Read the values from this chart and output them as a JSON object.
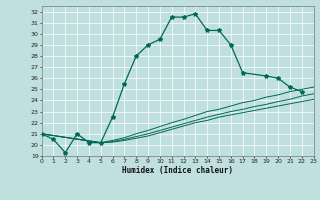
{
  "title": "",
  "xlabel": "Humidex (Indice chaleur)",
  "bg_color": "#c0e0e0",
  "line_color": "#006858",
  "xlim": [
    0,
    23
  ],
  "ylim": [
    19,
    32.5
  ],
  "yticks": [
    19,
    20,
    21,
    22,
    23,
    24,
    25,
    26,
    27,
    28,
    29,
    30,
    31,
    32
  ],
  "xticks": [
    0,
    1,
    2,
    3,
    4,
    5,
    6,
    7,
    8,
    9,
    10,
    11,
    12,
    13,
    14,
    15,
    16,
    17,
    18,
    19,
    20,
    21,
    22,
    23
  ],
  "main_x": [
    0,
    1,
    2,
    3,
    4,
    5,
    6,
    7,
    8,
    9,
    10,
    11,
    12,
    13,
    14,
    15,
    16,
    17,
    19,
    20,
    21,
    22
  ],
  "main_y": [
    21.0,
    20.5,
    19.3,
    21.0,
    20.2,
    20.2,
    22.5,
    25.5,
    28.0,
    29.0,
    29.5,
    31.5,
    31.5,
    31.8,
    30.3,
    30.3,
    29.0,
    26.5,
    26.2,
    26.0,
    25.2,
    24.8
  ],
  "diag_lines": [
    {
      "x": [
        0,
        5,
        6,
        7,
        8,
        9,
        10,
        11,
        12,
        13,
        14,
        15,
        16,
        17,
        18,
        19,
        20,
        21,
        22,
        23
      ],
      "y": [
        21.0,
        20.2,
        20.25,
        20.4,
        20.6,
        20.8,
        21.1,
        21.4,
        21.7,
        22.0,
        22.2,
        22.5,
        22.7,
        22.9,
        23.1,
        23.3,
        23.5,
        23.7,
        23.9,
        24.1
      ]
    },
    {
      "x": [
        0,
        5,
        6,
        7,
        8,
        9,
        10,
        11,
        12,
        13,
        14,
        15,
        16,
        17,
        18,
        19,
        20,
        21,
        22,
        23
      ],
      "y": [
        21.0,
        20.2,
        20.3,
        20.5,
        20.75,
        21.0,
        21.3,
        21.6,
        21.9,
        22.2,
        22.5,
        22.75,
        23.0,
        23.2,
        23.45,
        23.65,
        23.9,
        24.1,
        24.4,
        24.6
      ]
    },
    {
      "x": [
        0,
        5,
        6,
        7,
        8,
        9,
        10,
        11,
        12,
        13,
        14,
        15,
        16,
        17,
        18,
        19,
        20,
        21,
        22,
        23
      ],
      "y": [
        21.0,
        20.2,
        20.4,
        20.65,
        21.0,
        21.3,
        21.65,
        22.0,
        22.3,
        22.65,
        23.0,
        23.2,
        23.5,
        23.8,
        24.0,
        24.3,
        24.5,
        24.8,
        25.0,
        25.2
      ]
    }
  ]
}
